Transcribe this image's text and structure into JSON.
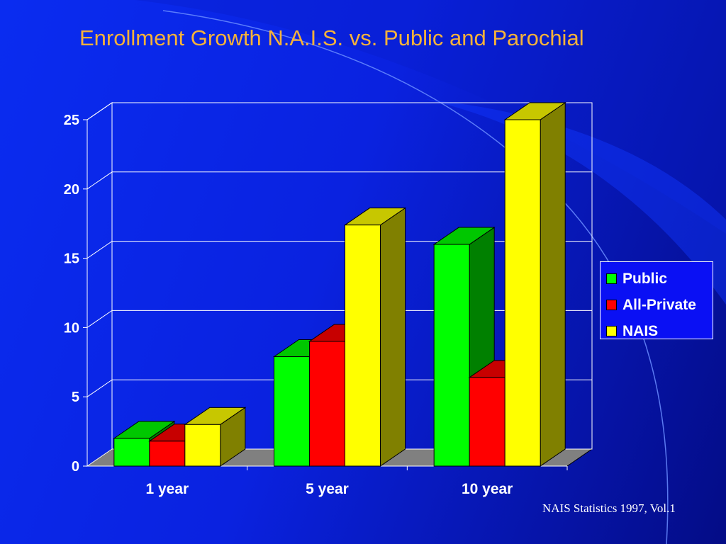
{
  "slide": {
    "title": "Enrollment Growth N.A.I.S. vs. Public and Parochial",
    "source": "NAIS Statistics 1997, Vol.1"
  },
  "chart_data": {
    "type": "bar",
    "style": "3d-clustered",
    "categories": [
      "1 year",
      "5 year",
      "10 year"
    ],
    "series": [
      {
        "name": "Public",
        "values": [
          2.0,
          7.9,
          16.0
        ],
        "color": "#00ff00"
      },
      {
        "name": "All-Private",
        "values": [
          1.8,
          9.0,
          6.4
        ],
        "color": "#ff0000"
      },
      {
        "name": "NAIS",
        "values": [
          3.0,
          17.4,
          25.0
        ],
        "color": "#ffff00"
      }
    ],
    "yticks": [
      "0",
      "5",
      "10",
      "15",
      "20",
      "25"
    ],
    "ylim": [
      0,
      25
    ],
    "title": "",
    "xlabel": "",
    "ylabel": "",
    "grid": true,
    "legend_position": "right"
  }
}
